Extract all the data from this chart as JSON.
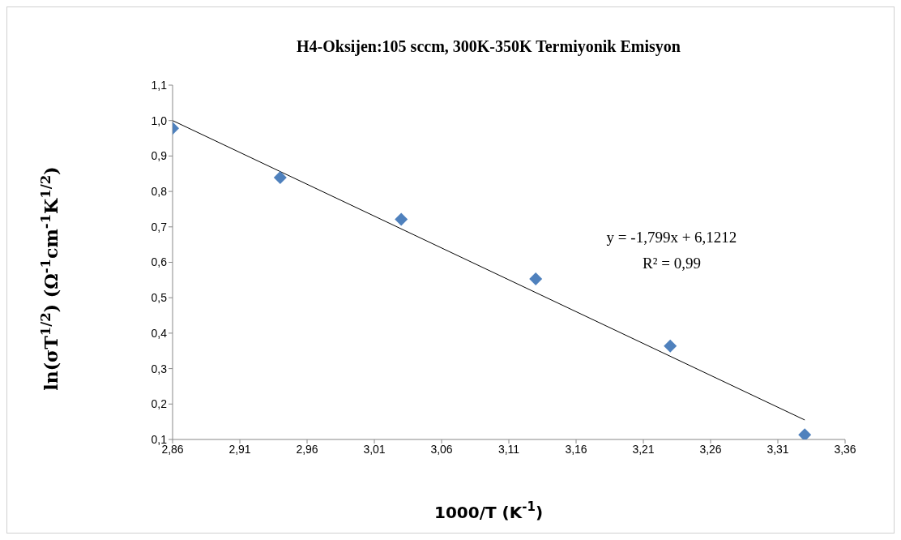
{
  "chart_data": {
    "type": "scatter",
    "title": "H4-Oksijen:105 sccm, 300K-350K Termiyonik  Emisyon",
    "xlabel": "1000/T  (K$^{-1}$)",
    "ylabel": "ln(σT$^{1/2}$) (Ω$^{-1}$cm$^{-1}$K$^{1/2}$)",
    "series": [
      {
        "color": "#4f81bd",
        "marker": "diamond",
        "x": [
          2.86,
          2.94,
          3.03,
          3.13,
          3.23,
          3.33
        ],
        "values": [
          0.978,
          0.839,
          0.721,
          0.553,
          0.364,
          0.113
        ]
      },
      {
        "type": "line",
        "color": "#000000",
        "x": [
          2.86,
          3.33
        ],
        "values": [
          1.0,
          0.155
        ]
      }
    ],
    "annotations": [
      "y = -1,799x + 6,1212",
      "R² = 0,99"
    ],
    "xlim": [
      2.86,
      3.36
    ],
    "xticks": [
      {
        "value": 2.86,
        "label": "2,86"
      },
      {
        "value": 2.91,
        "label": "2,91"
      },
      {
        "value": 2.96,
        "label": "2,96"
      },
      {
        "value": 3.01,
        "label": "3,01"
      },
      {
        "value": 3.06,
        "label": "3,06"
      },
      {
        "value": 3.11,
        "label": "3,11"
      },
      {
        "value": 3.16,
        "label": "3,16"
      },
      {
        "value": 3.21,
        "label": "3,21"
      },
      {
        "value": 3.26,
        "label": "3,26"
      },
      {
        "value": 3.31,
        "label": "3,31"
      },
      {
        "value": 3.36,
        "label": "3,36"
      }
    ],
    "ylim": [
      0.1,
      1.1
    ],
    "yticks": [
      {
        "value": 0.1,
        "label": "0,1"
      },
      {
        "value": 0.2,
        "label": "0,2"
      },
      {
        "value": 0.3,
        "label": "0,3"
      },
      {
        "value": 0.4,
        "label": "0,4"
      },
      {
        "value": 0.5,
        "label": "0,5"
      },
      {
        "value": 0.6,
        "label": "0,6"
      },
      {
        "value": 0.7,
        "label": "0,7"
      },
      {
        "value": 0.8,
        "label": "0,8"
      },
      {
        "value": 0.9,
        "label": "0,9"
      },
      {
        "value": 1.0,
        "label": "1,0"
      },
      {
        "value": 1.1,
        "label": "1,1"
      }
    ],
    "grid": false,
    "legend": false
  }
}
